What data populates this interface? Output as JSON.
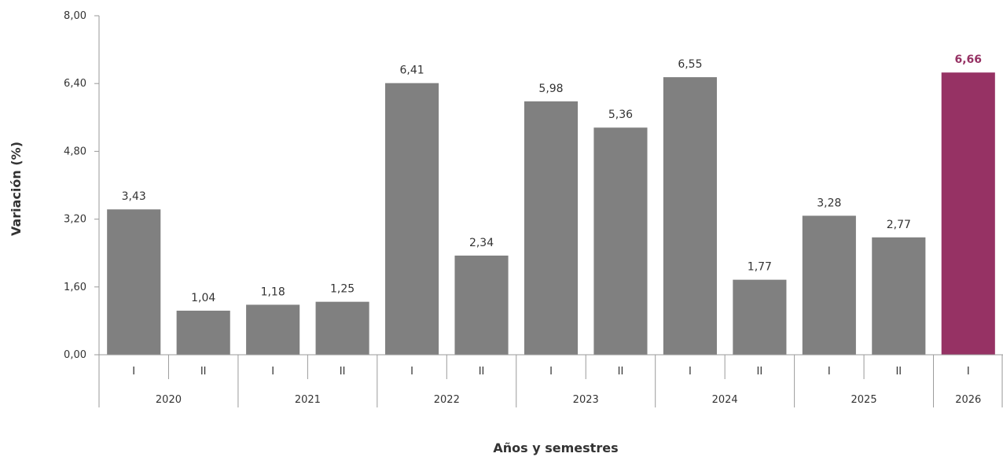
{
  "chart_data": {
    "type": "bar",
    "xlabel": "Años y semestres",
    "ylabel": "Variación (%)",
    "ylim": [
      0,
      8
    ],
    "yticks": [
      "0,00",
      "1,60",
      "3,20",
      "4,80",
      "6,40",
      "8,00"
    ],
    "grid": false,
    "groups": [
      {
        "label": "2020",
        "subs": [
          "I",
          "II"
        ]
      },
      {
        "label": "2021",
        "subs": [
          "I",
          "II"
        ]
      },
      {
        "label": "2022",
        "subs": [
          "I",
          "II"
        ]
      },
      {
        "label": "2023",
        "subs": [
          "I",
          "II"
        ]
      },
      {
        "label": "2024",
        "subs": [
          "I",
          "II"
        ]
      },
      {
        "label": "2025",
        "subs": [
          "I",
          "II"
        ]
      },
      {
        "label": "2026",
        "subs": [
          "I"
        ]
      }
    ],
    "values": [
      3.43,
      1.04,
      1.18,
      1.25,
      6.41,
      2.34,
      5.98,
      5.36,
      6.55,
      1.77,
      3.28,
      2.77,
      6.66
    ],
    "value_labels": [
      "3,43",
      "1,04",
      "1,18",
      "1,25",
      "6,41",
      "2,34",
      "5,98",
      "5,36",
      "6,55",
      "1,77",
      "3,28",
      "2,77",
      "6,66"
    ],
    "highlight_index": 12,
    "colors": {
      "bar": "#808080",
      "highlight": "#963264",
      "text": "#333333",
      "axis": "#9a9a9a"
    }
  }
}
